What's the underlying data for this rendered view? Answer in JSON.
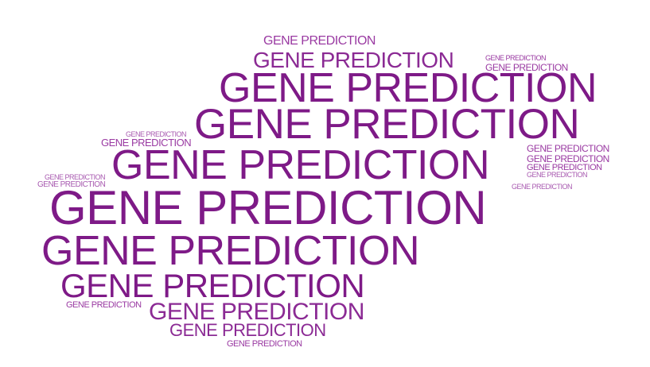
{
  "colors": {
    "background": "#ffffff",
    "dark_purple": "#7e1a87",
    "mid_purple": "#8b2a94",
    "light_purple": "#9a3aa2",
    "pale_purple": "#a85ab0"
  },
  "words": [
    "GENE PREDICTION",
    "GENE PREDICTION",
    "GENE PREDICTION",
    "GENE PREDICTION",
    "GENE PREDICTION",
    "GENE PREDICTION",
    "GENE PREDICTION",
    "GENE PREDICTION",
    "GENE PREDICTION",
    "GENE PREDICTION",
    "GENE PREDICTION",
    "GENE PREDICTION",
    "GENE PREDICTION",
    "GENE PREDICTION",
    "GENE PREDICTION",
    "GENE PREDICTION",
    "GENE PREDICTION",
    "GENE PREDICTION",
    "GENE PREDICTION",
    "GENE PREDICTION",
    "GENE PREDICTION",
    "GENE PREDICTION",
    "GENE PREDICTION",
    "GENE PREDICTION",
    "GENE PREDICTION"
  ]
}
